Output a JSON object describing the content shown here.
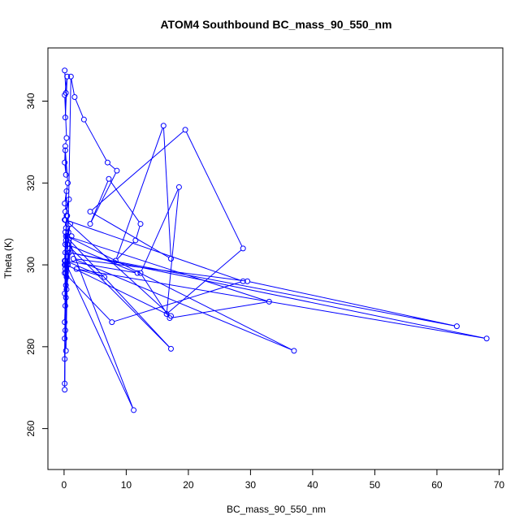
{
  "chart_data": {
    "type": "line",
    "title": "ATOM4 Southbound BC_mass_90_550_nm",
    "xlabel": "BC_mass_90_550_nm",
    "ylabel": "Theta (K)",
    "xlim": [
      -2.6,
      70.6
    ],
    "ylim": [
      250,
      353
    ],
    "xticks": [
      0,
      10,
      20,
      30,
      40,
      50,
      60,
      70
    ],
    "yticks": [
      260,
      280,
      300,
      320,
      340
    ],
    "grid": false,
    "line_color": "#0000ff",
    "series": [
      {
        "x": [
          0.1,
          0.3,
          0.2,
          0.5,
          0.1,
          0.4,
          0.2,
          0.1,
          0.3,
          0.2,
          0.6,
          0.1,
          0.4,
          0.2,
          0.8,
          0.1,
          0.3,
          0.5,
          0.2,
          0.1,
          0.7,
          0.3,
          1.0,
          0.2,
          0.1,
          0.4,
          0.2,
          0.9,
          0.3,
          0.1,
          0.5,
          0.2,
          1.2,
          0.3,
          0.1,
          0.6,
          0.2,
          0.4,
          0.1,
          0.3,
          1.1,
          1.7,
          3.2,
          7.0,
          8.5,
          4.2,
          7.2,
          12.3,
          11.5,
          8.3,
          16.0,
          17.2,
          4.2,
          19.5,
          28.8,
          16.5,
          18.5,
          12.3,
          17.0,
          33.0,
          0.5,
          37.0,
          1.5,
          29.5,
          63.2,
          0.8,
          68.0,
          2.0,
          6.5,
          0.2,
          11.8,
          0.5,
          17.2,
          0.3,
          0.1,
          7.7,
          28.8,
          0.2,
          17.2,
          0.4,
          11.2,
          0.2,
          0.3,
          0.1,
          0.2,
          0.4,
          0.1,
          0.2,
          0.1
        ],
        "y": [
          347.5,
          342,
          336,
          346,
          341.5,
          331,
          329,
          325,
          322,
          328,
          320,
          315,
          318,
          313,
          316,
          311,
          309,
          312,
          305,
          301,
          308,
          306,
          310,
          303,
          300,
          297,
          299,
          304,
          295,
          293,
          302,
          290,
          307,
          298,
          286,
          300,
          284,
          294,
          282,
          279,
          346,
          341,
          335.5,
          325,
          323,
          310,
          321,
          310,
          306,
          301,
          334,
          301.5,
          313,
          333,
          304,
          288,
          319,
          298,
          287,
          291,
          307,
          279,
          301.5,
          296,
          285,
          303,
          282,
          299,
          297,
          301,
          298,
          305,
          279.5,
          307,
          298,
          286,
          296,
          311,
          287.5,
          300,
          264.5,
          308,
          292,
          277,
          305,
          312,
          271,
          300,
          269.5
        ]
      }
    ]
  }
}
